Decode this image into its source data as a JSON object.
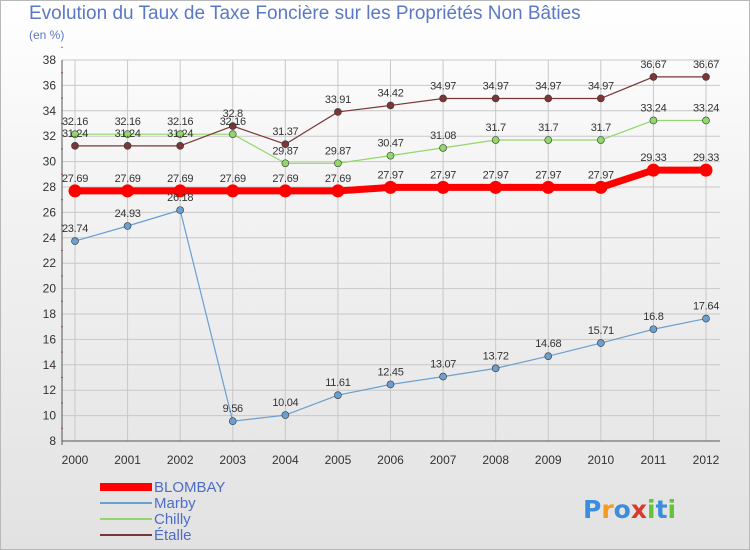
{
  "chart_data": {
    "type": "line",
    "title": "Evolution du Taux de Taxe Foncière sur les Propriétés Non Bâties",
    "ylabel": "(en %)",
    "xlabel": "",
    "ylim": [
      8,
      38
    ],
    "yticks": [
      8,
      10,
      12,
      14,
      16,
      18,
      20,
      22,
      24,
      26,
      28,
      30,
      32,
      34,
      36,
      38
    ],
    "categories": [
      "2000",
      "2001",
      "2002",
      "2003",
      "2004",
      "2005",
      "2006",
      "2007",
      "2008",
      "2009",
      "2010",
      "2011",
      "2012"
    ],
    "series": [
      {
        "name": "BLOMBAY",
        "color": "#ff0000",
        "values": [
          27.69,
          27.69,
          27.69,
          27.69,
          27.69,
          27.69,
          27.97,
          27.97,
          27.97,
          27.97,
          27.97,
          29.33,
          29.33
        ],
        "labels": [
          "27.69",
          "27.69",
          "27.69",
          "27.69",
          "27.69",
          "27.69",
          "27.97",
          "27.97",
          "27.97",
          "27.97",
          "27.97",
          "29.33",
          "29.33"
        ]
      },
      {
        "name": "Marby",
        "color": "#6b9fcf",
        "values": [
          23.74,
          24.93,
          26.18,
          9.56,
          10.04,
          11.61,
          12.45,
          13.07,
          13.72,
          14.68,
          15.71,
          16.8,
          17.64
        ],
        "labels": [
          "23.74",
          "24.93",
          "26.18",
          "9.56",
          "10.04",
          "11.61",
          "12.45",
          "13.07",
          "13.72",
          "14.68",
          "15.71",
          "16.8",
          "17.64"
        ]
      },
      {
        "name": "Chilly",
        "color": "#92d76b",
        "values": [
          32.16,
          32.16,
          32.16,
          32.16,
          29.87,
          29.87,
          30.47,
          31.08,
          31.7,
          31.7,
          31.7,
          33.24,
          33.24
        ],
        "labels": [
          "32.16",
          "32.16",
          "32.16",
          "32.16",
          "29.87",
          "29.87",
          "30.47",
          "31.08",
          "31.7",
          "31.7",
          "31.7",
          "33.24",
          "33.24"
        ]
      },
      {
        "name": "Étalle",
        "color": "#7b3737",
        "values": [
          31.24,
          31.24,
          31.24,
          32.8,
          31.37,
          33.91,
          34.42,
          34.97,
          34.97,
          34.97,
          34.97,
          36.67,
          36.67
        ],
        "labels": [
          "31.24",
          "31.24",
          "31.24",
          "32.8",
          "31.37",
          "33.91",
          "34.42",
          "34.97",
          "34.97",
          "34.97",
          "34.97",
          "36.67",
          "36.67"
        ]
      }
    ],
    "legend": [
      "BLOMBAY",
      "Marby",
      "Chilly",
      "Étalle"
    ]
  },
  "branding": {
    "logo": "Proxiti",
    "letter_colors": [
      "#3b8ede",
      "#f39c1f",
      "#3b8ede",
      "#d73b2f",
      "#65c33b",
      "#3b8ede",
      "#65c33b"
    ]
  },
  "colors": {
    "grid": "#c8c8c8",
    "axis": "#555555",
    "text": "#5a78c6"
  }
}
